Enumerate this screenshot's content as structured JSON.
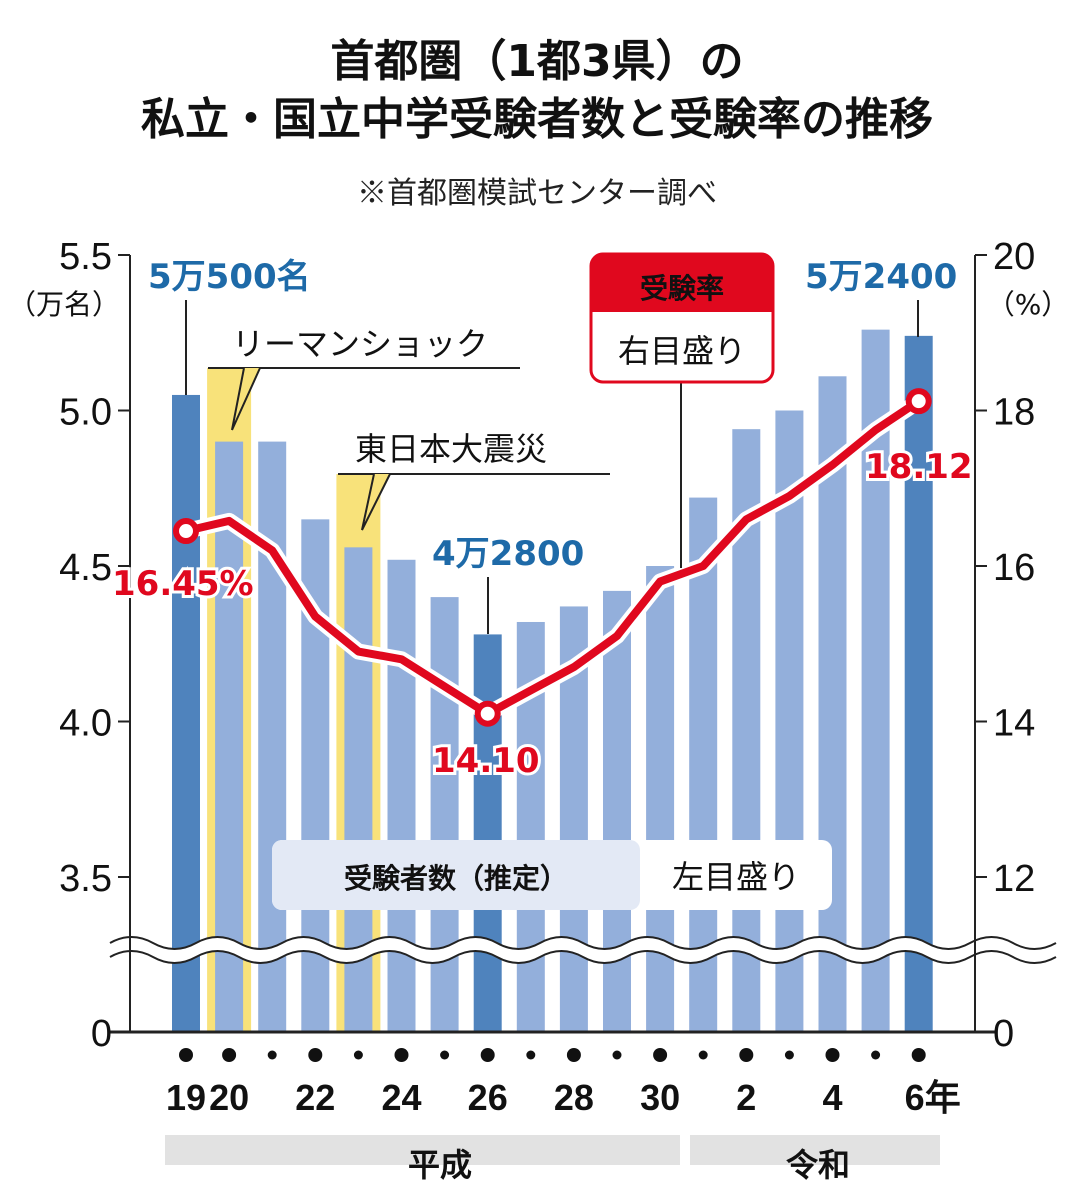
{
  "chart_data": {
    "type": "bar+line",
    "title": "首都圏（1都3県）の",
    "title_line2": "私立・国立中学受験者数と受験率の推移",
    "source": "※首都圏模試センター調べ",
    "categories": [
      "19",
      "20",
      "21",
      "22",
      "23",
      "24",
      "25",
      "26",
      "27",
      "28",
      "29",
      "30",
      "31/1",
      "2",
      "3",
      "4",
      "5",
      "6"
    ],
    "x_tick_labels": [
      "19",
      "20",
      "",
      "22",
      "",
      "24",
      "",
      "26",
      "",
      "28",
      "",
      "30",
      "",
      "2",
      "",
      "4",
      "",
      "6年"
    ],
    "eras": [
      {
        "label": "平成",
        "from": "19",
        "to": "30"
      },
      {
        "label": "令和",
        "from": "31/1",
        "to": "6"
      }
    ],
    "series": [
      {
        "name": "受験者数（推定）",
        "axis": "left",
        "axis_note": "左目盛り",
        "type": "bar",
        "unit": "万名",
        "values": [
          5.05,
          4.9,
          4.9,
          4.65,
          4.56,
          4.52,
          4.4,
          4.28,
          4.32,
          4.37,
          4.42,
          4.5,
          4.72,
          4.94,
          5.0,
          5.11,
          5.26,
          5.24
        ],
        "highlighted": [
          "19",
          "26",
          "6"
        ]
      },
      {
        "name": "受験率",
        "axis": "right",
        "axis_note": "右目盛り",
        "type": "line",
        "unit": "%",
        "values": [
          16.45,
          16.58,
          16.2,
          15.35,
          14.9,
          14.8,
          14.45,
          14.1,
          14.4,
          14.7,
          15.1,
          15.8,
          16.0,
          16.6,
          16.9,
          17.3,
          17.75,
          18.12
        ]
      }
    ],
    "left_axis": {
      "unit": "（万名）",
      "ticks": [
        "5.5",
        "5.0",
        "4.5",
        "4.0",
        "3.5",
        "0"
      ],
      "range": [
        0,
        5.5
      ],
      "broken_between": [
        0,
        3.5
      ]
    },
    "right_axis": {
      "unit": "（%）",
      "ticks": [
        "20",
        "18",
        "16",
        "14",
        "12",
        "0"
      ],
      "range": [
        0,
        20
      ],
      "broken_between": [
        0,
        12
      ]
    },
    "data_labels": {
      "bar_19": "5万500名",
      "bar_26": "4万2800",
      "bar_6": "5万2400",
      "line_19": "16.45%",
      "line_26": "14.10",
      "line_6": "18.12"
    },
    "events": [
      {
        "year": "20",
        "label": "リーマンショック"
      },
      {
        "year": "23",
        "label": "東日本大震災"
      }
    ],
    "colors": {
      "bar": "#93afdb",
      "bar_highlight": "#4f83bd",
      "event_band": "#f8e27a",
      "line": "#e0081e",
      "bar_label": "#1e6aa8"
    },
    "grid": false,
    "legend": "inline"
  }
}
